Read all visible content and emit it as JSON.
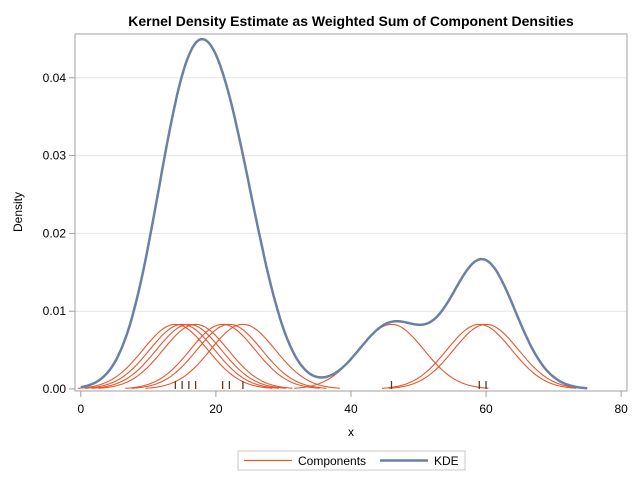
{
  "chart_data": {
    "type": "line",
    "title": "Kernel Density Estimate as Weighted Sum of Component Densities",
    "xlabel": "x",
    "ylabel": "Density",
    "xlim": [
      -1,
      81
    ],
    "ylim": [
      0,
      0.0455
    ],
    "x_ticks": [
      0,
      20,
      40,
      60,
      80
    ],
    "x_tick_labels": [
      "0",
      "20",
      "40",
      "60",
      "80"
    ],
    "y_ticks": [
      0,
      0.01,
      0.02,
      0.03,
      0.04
    ],
    "y_tick_labels": [
      "0.00",
      "0.01",
      "0.02",
      "0.03",
      "0.04"
    ],
    "grid": "horizontal",
    "legend_position": "bottom",
    "observations": [
      14,
      15,
      16,
      17,
      21,
      22,
      24,
      46,
      59,
      60
    ],
    "bandwidth": 4.8,
    "kde_range": [
      0,
      75
    ],
    "series": [
      {
        "name": "Components",
        "color": "#e4572e"
      },
      {
        "name": "KDE",
        "color": "#6b80a6"
      }
    ],
    "rug_color": "#5c3b1e"
  }
}
